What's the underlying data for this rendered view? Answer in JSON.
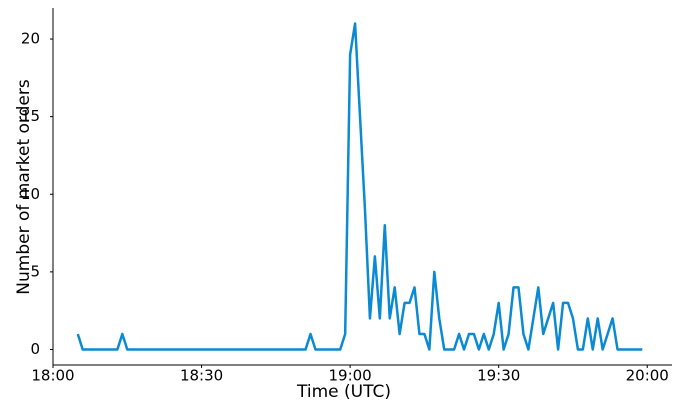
{
  "chart_data": {
    "type": "line",
    "x_label": "Time (UTC)",
    "y_label": "Number of market orders",
    "x": [
      "18:05",
      "18:06",
      "18:13",
      "18:14",
      "18:15",
      "18:51",
      "18:52",
      "18:53",
      "18:58",
      "18:59",
      "19:00",
      "19:01",
      "19:02",
      "19:03",
      "19:04",
      "19:05",
      "19:06",
      "19:07",
      "19:08",
      "19:09",
      "19:10",
      "19:11",
      "19:12",
      "19:13",
      "19:14",
      "19:15",
      "19:16",
      "19:17",
      "19:18",
      "19:19",
      "19:20",
      "19:21",
      "19:22",
      "19:23",
      "19:24",
      "19:25",
      "19:26",
      "19:27",
      "19:28",
      "19:29",
      "19:30",
      "19:31",
      "19:32",
      "19:33",
      "19:34",
      "19:35",
      "19:36",
      "19:37",
      "19:38",
      "19:39",
      "19:40",
      "19:41",
      "19:42",
      "19:43",
      "19:44",
      "19:45",
      "19:46",
      "19:47",
      "19:48",
      "19:49",
      "19:50",
      "19:51",
      "19:52",
      "19:53",
      "19:54",
      "19:55",
      "19:56",
      "19:57",
      "19:58",
      "19:59"
    ],
    "series": [
      {
        "color": "#0a8ad2",
        "values": [
          1,
          0,
          0,
          1,
          0,
          0,
          1,
          0,
          0,
          1,
          19,
          21,
          15,
          9,
          2,
          6,
          2,
          8,
          2,
          4,
          1,
          3,
          3,
          4,
          1,
          1,
          0,
          5,
          2,
          0,
          0,
          0,
          1,
          0,
          1,
          1,
          0,
          1,
          0,
          1,
          3,
          0,
          1,
          4,
          4,
          1,
          0,
          2,
          4,
          1,
          2,
          3,
          0,
          3,
          3,
          2,
          0,
          0,
          2,
          0,
          2,
          0,
          1,
          2,
          0,
          0,
          0,
          0,
          0,
          0
        ]
      }
    ],
    "xlim": [
      "18:00",
      "20:05"
    ],
    "xticks": [
      "18:00",
      "18:30",
      "19:00",
      "19:30",
      "20:00"
    ],
    "ylim": [
      -1,
      22
    ],
    "yticks": [
      0,
      5,
      10,
      15,
      20
    ]
  }
}
